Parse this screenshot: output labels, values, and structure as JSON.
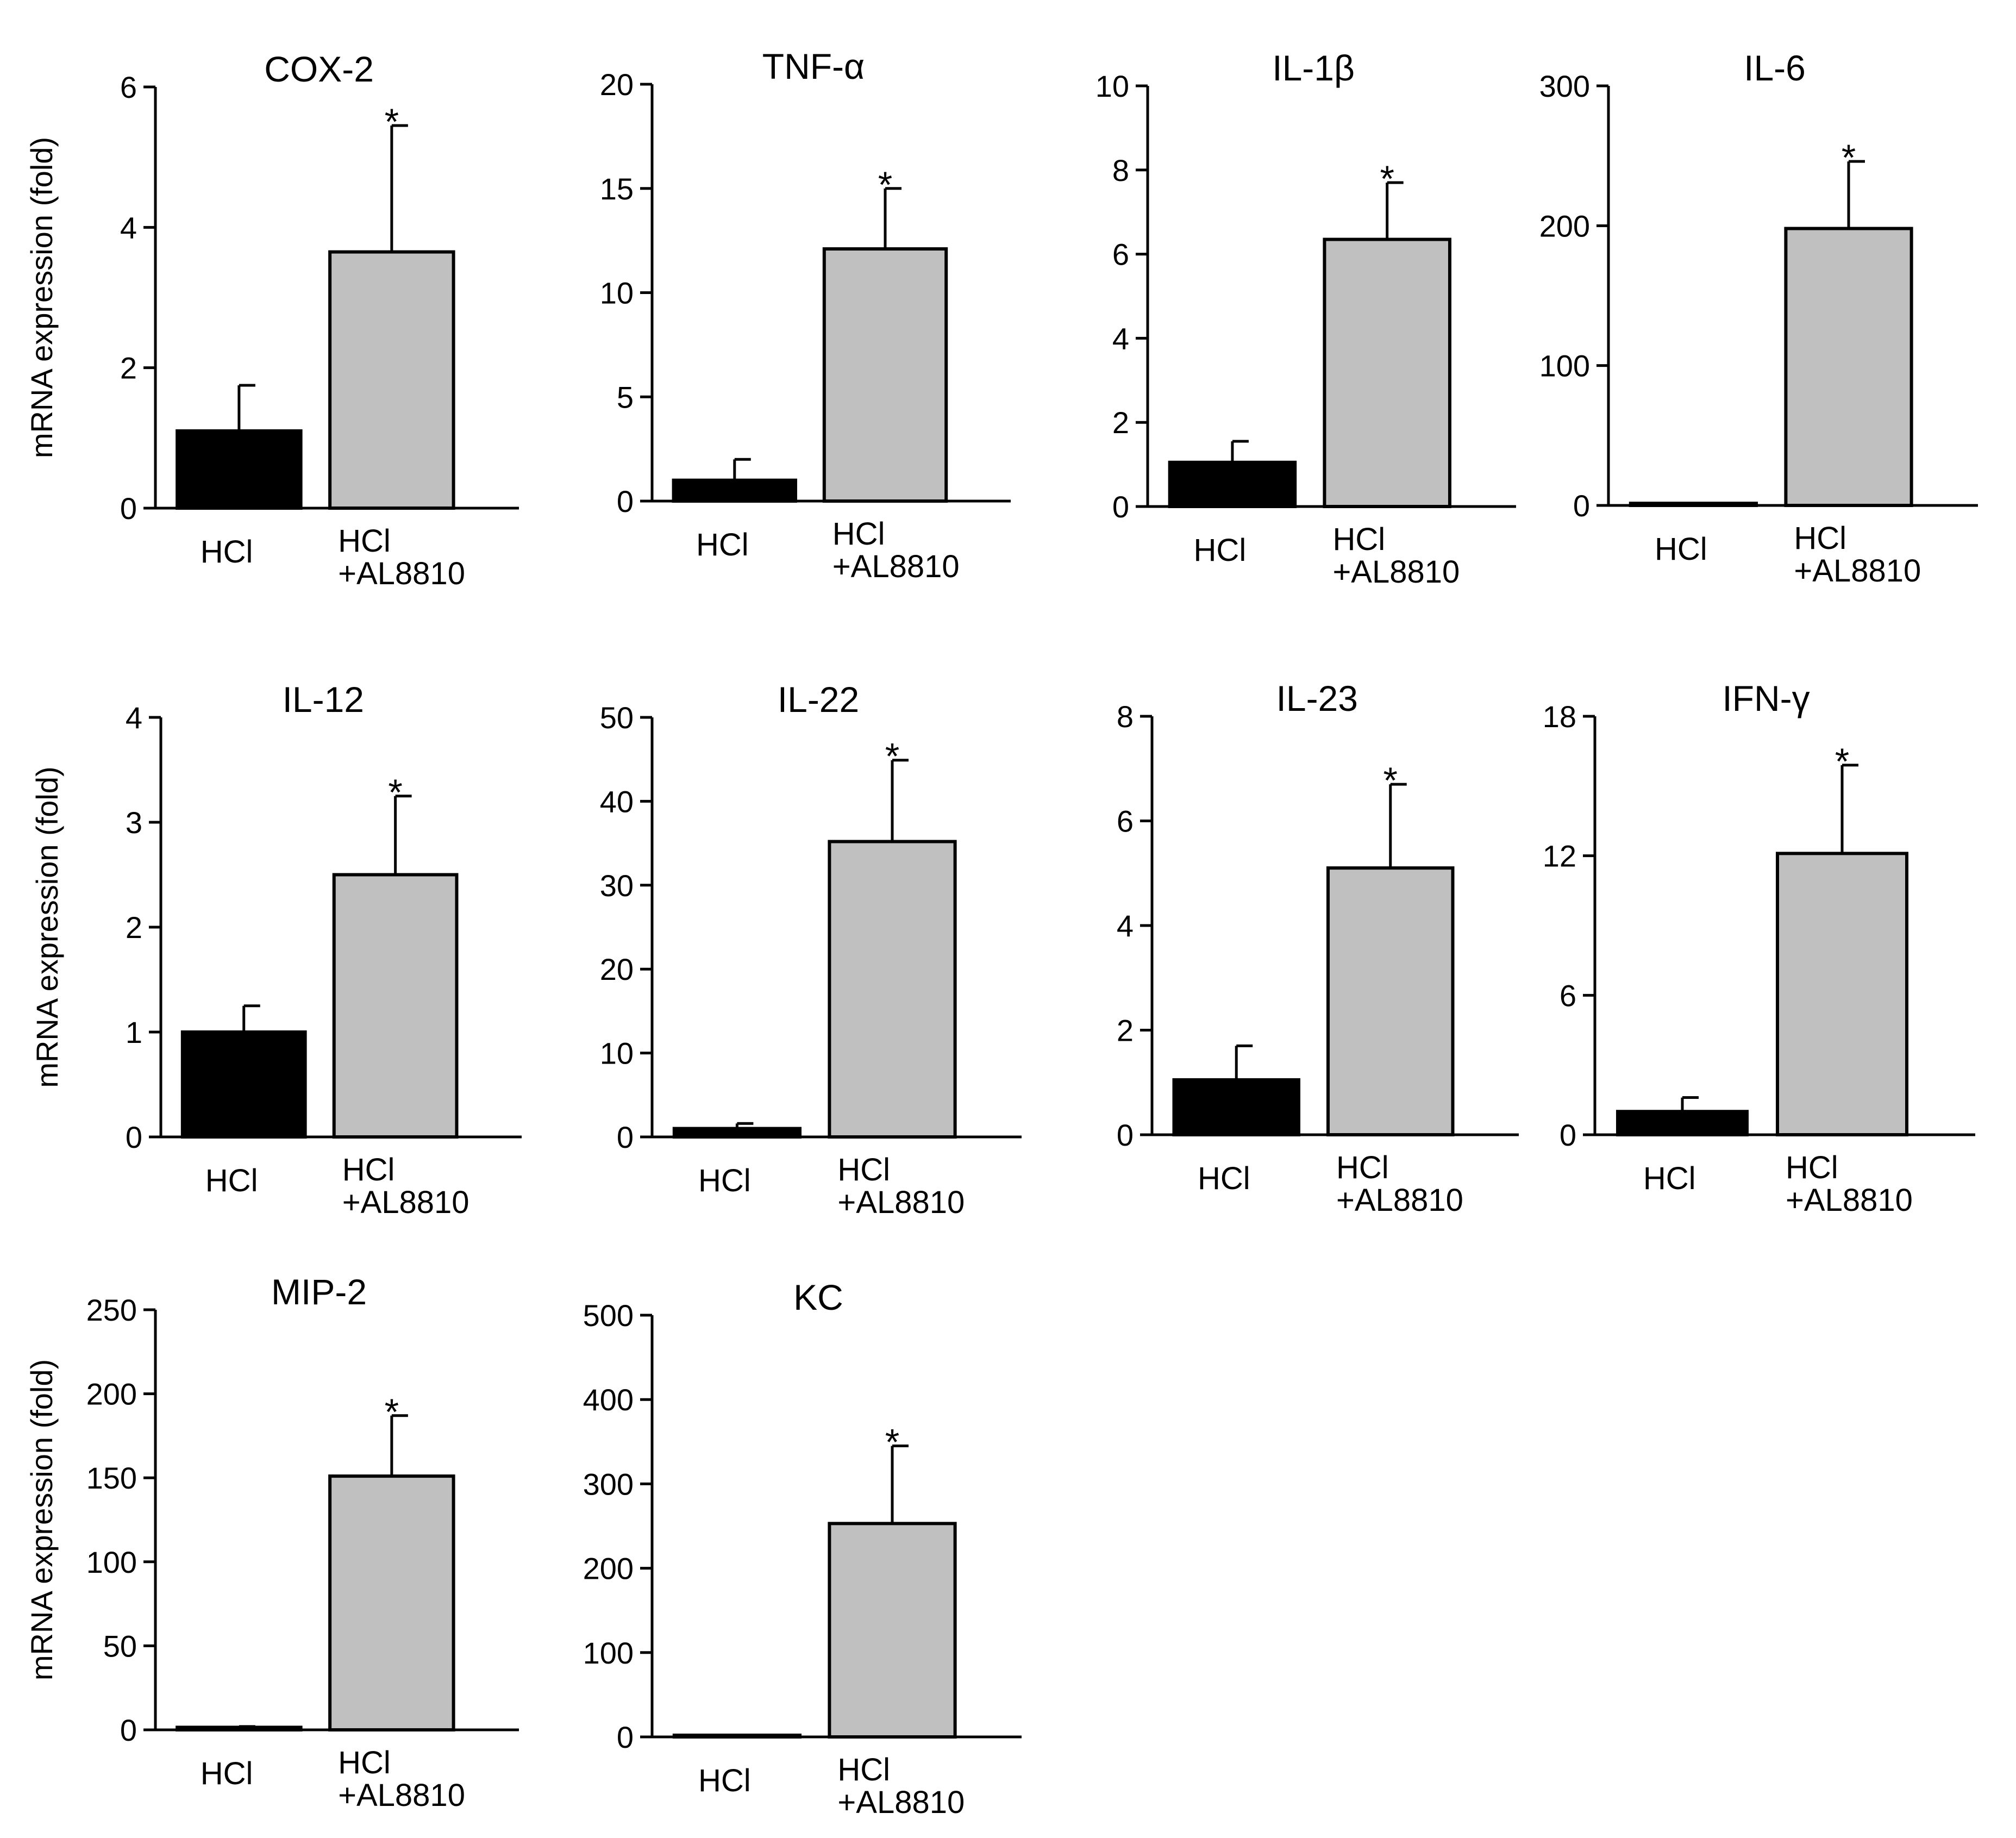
{
  "figure": {
    "ylabel": "mRNA expression (fold)",
    "significance_marker": "*",
    "colors": {
      "control_bar": "#000000",
      "treated_bar": "#c0c0c0",
      "axis": "#000000"
    }
  },
  "chart_data": [
    {
      "type": "bar",
      "title": "COX-2",
      "ylabel": "mRNA expression (fold)",
      "ylim": [
        0,
        6
      ],
      "yticks": [
        "0",
        "2",
        "4",
        "6"
      ],
      "categories": [
        "HCl",
        "HCl\n+AL8810"
      ],
      "values": [
        1.1,
        3.65
      ],
      "errors": [
        0.65,
        1.8
      ],
      "significant": [
        false,
        true
      ]
    },
    {
      "type": "bar",
      "title": "TNF-α",
      "ylabel": "",
      "ylim": [
        0,
        20
      ],
      "yticks": [
        "0",
        "5",
        "10",
        "15",
        "20"
      ],
      "categories": [
        "HCl",
        "HCl\n+AL8810"
      ],
      "values": [
        1.0,
        12.1
      ],
      "errors": [
        1.0,
        2.9
      ],
      "significant": [
        false,
        true
      ]
    },
    {
      "type": "bar",
      "title": "IL-1β",
      "ylabel": "",
      "ylim": [
        0,
        10
      ],
      "yticks": [
        "0",
        "2",
        "4",
        "6",
        "8",
        "10"
      ],
      "categories": [
        "HCl",
        "HCl\n+AL8810"
      ],
      "values": [
        1.05,
        6.35
      ],
      "errors": [
        0.5,
        1.35
      ],
      "significant": [
        false,
        true
      ]
    },
    {
      "type": "bar",
      "title": "IL-6",
      "ylabel": "",
      "ylim": [
        0,
        300
      ],
      "yticks": [
        "0",
        "100",
        "200",
        "300"
      ],
      "categories": [
        "HCl",
        "HCl\n+AL8810"
      ],
      "values": [
        1.5,
        198
      ],
      "errors": [
        0,
        48
      ],
      "significant": [
        false,
        true
      ]
    },
    {
      "type": "bar",
      "title": "IL-12",
      "ylabel": "mRNA expression (fold)",
      "ylim": [
        0,
        4
      ],
      "yticks": [
        "0",
        "1",
        "2",
        "3",
        "4"
      ],
      "categories": [
        "HCl",
        "HCl\n+AL8810"
      ],
      "values": [
        1.0,
        2.5
      ],
      "errors": [
        0.25,
        0.75
      ],
      "significant": [
        false,
        true
      ]
    },
    {
      "type": "bar",
      "title": "IL-22",
      "ylabel": "",
      "ylim": [
        0,
        50
      ],
      "yticks": [
        "0",
        "10",
        "20",
        "30",
        "40",
        "50"
      ],
      "categories": [
        "HCl",
        "HCl\n+AL8810"
      ],
      "values": [
        1.0,
        35.2
      ],
      "errors": [
        0.6,
        9.7
      ],
      "significant": [
        false,
        true
      ]
    },
    {
      "type": "bar",
      "title": "IL-23",
      "ylabel": "",
      "ylim": [
        0,
        8
      ],
      "yticks": [
        "0",
        "2",
        "4",
        "6",
        "8"
      ],
      "categories": [
        "HCl",
        "HCl\n+AL8810"
      ],
      "values": [
        1.05,
        5.1
      ],
      "errors": [
        0.65,
        1.6
      ],
      "significant": [
        false,
        true
      ]
    },
    {
      "type": "bar",
      "title": "IFN-γ",
      "ylabel": "",
      "ylim": [
        0,
        18
      ],
      "yticks": [
        "0",
        "6",
        "12",
        "18"
      ],
      "categories": [
        "HCl",
        "HCl\n+AL8810"
      ],
      "values": [
        1.0,
        12.1
      ],
      "errors": [
        0.6,
        3.8
      ],
      "significant": [
        false,
        true
      ]
    },
    {
      "type": "bar",
      "title": "MIP-2",
      "ylabel": "mRNA expression (fold)",
      "ylim": [
        0,
        250
      ],
      "yticks": [
        "0",
        "50",
        "100",
        "150",
        "200",
        "250"
      ],
      "categories": [
        "HCl",
        "HCl\n+AL8810"
      ],
      "values": [
        1.5,
        151
      ],
      "errors": [
        0.5,
        36
      ],
      "significant": [
        false,
        true
      ]
    },
    {
      "type": "bar",
      "title": "KC",
      "ylabel": "",
      "ylim": [
        0,
        500
      ],
      "yticks": [
        "0",
        "100",
        "200",
        "300",
        "400",
        "500"
      ],
      "categories": [
        "HCl",
        "HCl\n+AL8810"
      ],
      "values": [
        2.0,
        253
      ],
      "errors": [
        0,
        92
      ],
      "significant": [
        false,
        true
      ]
    }
  ]
}
